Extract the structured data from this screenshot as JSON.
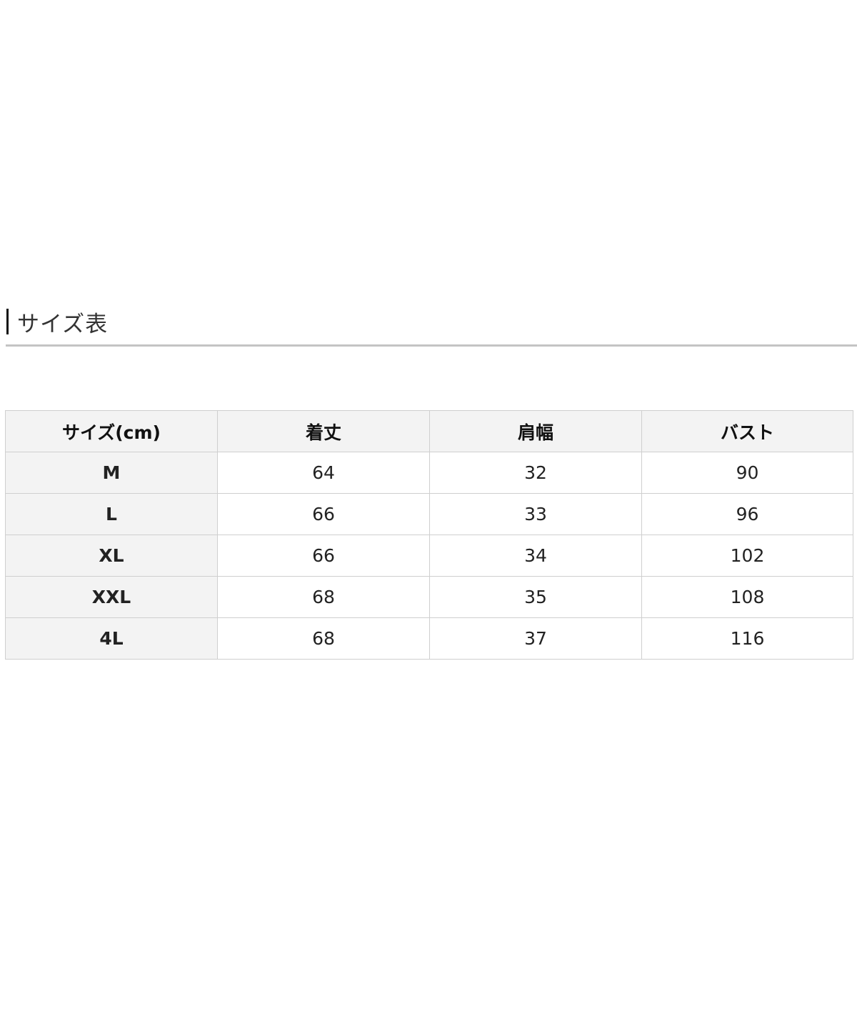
{
  "section": {
    "title": "サイズ表"
  },
  "table": {
    "headers": [
      "サイズ(cm)",
      "着丈",
      "肩幅",
      "バスト"
    ],
    "rows": [
      [
        "M",
        "64",
        "32",
        "90"
      ],
      [
        "L",
        "66",
        "33",
        "96"
      ],
      [
        "XL",
        "66",
        "34",
        "102"
      ],
      [
        "XXL",
        "68",
        "35",
        "108"
      ],
      [
        "4L",
        "68",
        "37",
        "116"
      ]
    ]
  }
}
